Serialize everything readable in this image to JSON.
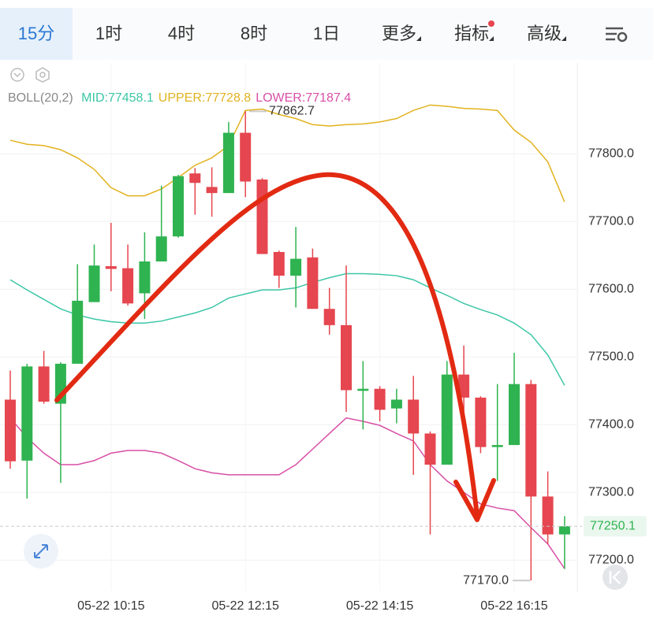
{
  "tabs": [
    "15分",
    "1时",
    "4时",
    "8时",
    "1日",
    "更多",
    "指标",
    "高级"
  ],
  "chart_data": {
    "type": "candlestick",
    "indicator": "BOLL(20,2)",
    "categories": [
      null,
      null,
      null,
      null,
      null,
      null,
      "05-22 10:15",
      null,
      null,
      null,
      null,
      null,
      null,
      null,
      "05-22 12:15",
      null,
      null,
      null,
      null,
      null,
      null,
      null,
      "05-22 14:15",
      null,
      null,
      null,
      null,
      null,
      null,
      null,
      "05-22 16:15",
      null,
      null,
      null
    ],
    "open": [
      77437,
      77347,
      77486,
      77431,
      77490,
      77581,
      77634,
      77631,
      77594,
      77641,
      77678,
      77771,
      77751,
      77742,
      77831,
      77762,
      77655,
      77620,
      77647,
      77571,
      77547,
      77450,
      77453,
      77424,
      77437,
      77387,
      77341,
      77474,
      77440,
      77367,
      77370,
      77460,
      77294,
      77238
    ],
    "high": [
      77480,
      77490,
      77509,
      77492,
      77637,
      77666,
      77698,
      77666,
      77684,
      77753,
      77769,
      77779,
      77780,
      77847,
      77862.7,
      77764,
      77657,
      77692,
      77660,
      77602,
      77635,
      77494,
      77457,
      77453,
      77472,
      77390,
      77494,
      77517,
      77442,
      77460,
      77506,
      77466,
      77331,
      77265
    ],
    "low": [
      77335,
      77291,
      77431,
      77314,
      77490,
      77581,
      77597,
      77576,
      77556,
      77641,
      77676,
      77710,
      77707,
      77742,
      77736,
      77652,
      77602,
      77573,
      77571,
      77533,
      77419,
      77393,
      77405,
      77402,
      77326,
      77238,
      77341,
      77410,
      77358,
      77317,
      77370,
      77170,
      77224,
      77187
    ],
    "close": [
      77346,
      77486,
      77434,
      77490,
      77583,
      77635,
      77630,
      77579,
      77641,
      77678,
      77767,
      77757,
      77742,
      77831,
      77759,
      77652,
      77620,
      77645,
      77571,
      77547,
      77451,
      77453,
      77422,
      77437,
      77387,
      77341,
      77474,
      77440,
      77367,
      77370,
      77460,
      77294,
      77238,
      77250.1
    ],
    "up_color": "#2fb350",
    "down_color": "#e5464f",
    "series": [
      {
        "name": "MID:77458.1",
        "color": "#3cc6a6",
        "values": [
          77614,
          77599,
          77585,
          77571,
          77562,
          77556,
          77552,
          77550,
          77550,
          77553,
          77559,
          77565,
          77573,
          77587,
          77593,
          77599,
          77599,
          77602,
          77610,
          77617,
          77623,
          77623,
          77622,
          77620,
          77614,
          77602,
          77591,
          77579,
          77570,
          77562,
          77550,
          77533,
          77503,
          77458.1
        ]
      },
      {
        "name": "UPPER:77728.8",
        "color": "#e2b21f",
        "values": [
          77820,
          77814,
          77812,
          77806,
          77794,
          77777,
          77750,
          77738,
          77738,
          77748,
          77765,
          77783,
          77794,
          77812,
          77864,
          77866,
          77858,
          77852,
          77843,
          77841,
          77843,
          77844,
          77847,
          77852,
          77864,
          77872,
          77870,
          77867,
          77866,
          77864,
          77835,
          77817,
          77788,
          77728.8
        ]
      },
      {
        "name": "LOWER:77187.4",
        "color": "#d84fa6",
        "values": [
          77410,
          77381,
          77358,
          77341,
          77341,
          77347,
          77358,
          77362,
          77362,
          77358,
          77347,
          77335,
          77329,
          77326,
          77326,
          77326,
          77326,
          77341,
          77364,
          77387,
          77410,
          77405,
          77399,
          77387,
          77376,
          77341,
          77317,
          77300,
          77283,
          77277,
          77273,
          77248,
          77224,
          77187.4
        ]
      }
    ],
    "ylim": [
      77155,
      77934
    ],
    "yticks": [
      {
        "value": 77200,
        "label": "77200.0"
      },
      {
        "value": 77300,
        "label": "77300.0"
      },
      {
        "value": 77400,
        "label": "77400.0"
      },
      {
        "value": 77500,
        "label": "77500.0"
      },
      {
        "value": 77600,
        "label": "77600.0"
      },
      {
        "value": 77700,
        "label": "77700.0"
      },
      {
        "value": 77800,
        "label": "77800.0"
      }
    ],
    "annotations": [
      {
        "value": 77862.7,
        "label": "77862.7"
      },
      {
        "value": 77170,
        "label": "77170.0"
      }
    ],
    "last_price": {
      "value": 77250.1,
      "label": "77250.1"
    },
    "grid": true
  }
}
